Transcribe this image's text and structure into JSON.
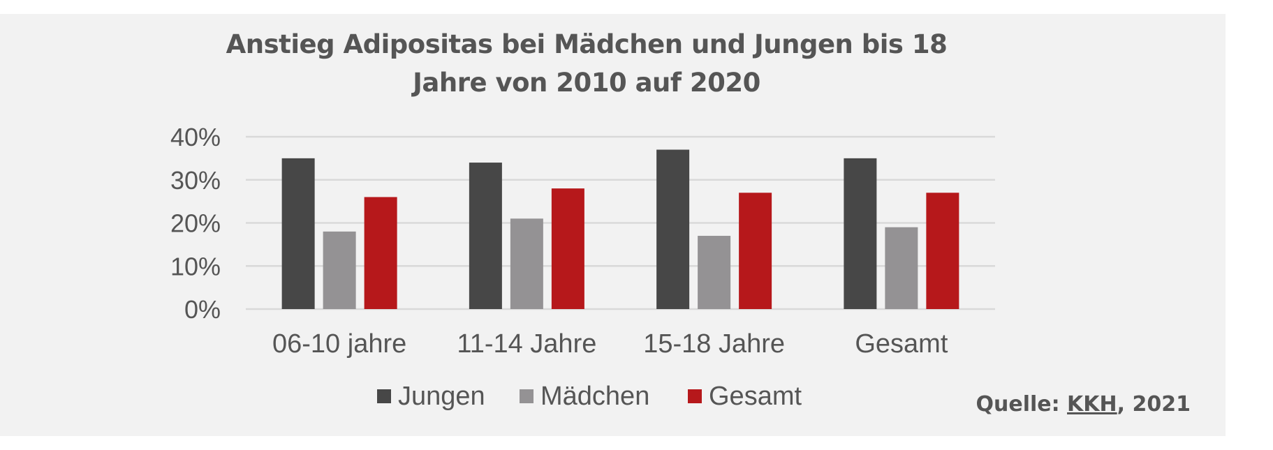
{
  "chart_data": {
    "type": "bar",
    "title": "Anstieg Adipositas bei Mädchen und Jungen bis 18 Jahre von 2010 auf 2020",
    "categories": [
      "06-10 jahre",
      "11-14 Jahre",
      "15-18 Jahre",
      "Gesamt"
    ],
    "series": [
      {
        "name": "Jungen",
        "color": "#474747",
        "values": [
          35,
          34,
          37,
          35
        ]
      },
      {
        "name": "Mädchen",
        "color": "#949294",
        "values": [
          18,
          21,
          17,
          19
        ]
      },
      {
        "name": "Gesamt",
        "color": "#b6181b",
        "values": [
          26,
          28,
          27,
          27
        ]
      }
    ],
    "ylim": [
      0,
      40
    ],
    "yticks": [
      "0%",
      "10%",
      "20%",
      "30%",
      "40%"
    ],
    "ytick_values": [
      0,
      10,
      20,
      30,
      40
    ],
    "grid": true,
    "legend_position": "bottom",
    "xlabel": "",
    "ylabel": ""
  },
  "source": {
    "prefix": "Quelle: ",
    "link": "KKH",
    "suffix": ", 2021"
  },
  "colors": {
    "background": "#f2f2f2",
    "gridline": "#d9d9d9",
    "text": "#555555"
  }
}
